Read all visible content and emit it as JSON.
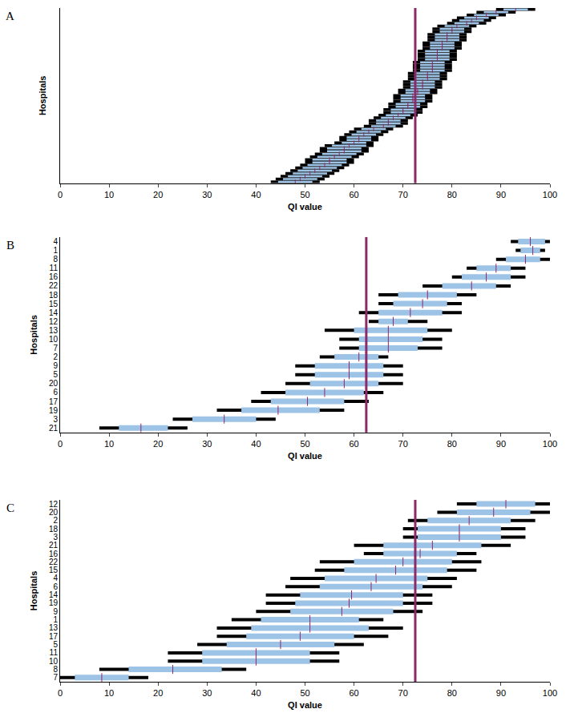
{
  "chart_data": [
    {
      "type": "range",
      "label": "A",
      "orientation": "horizontal",
      "color": "#9dc3e6",
      "x_label": "QI value",
      "y_label": "Hospitals",
      "xlim": [
        0,
        100
      ],
      "xticks": [
        0,
        10,
        20,
        30,
        40,
        50,
        60,
        70,
        80,
        90,
        100
      ],
      "reference": 72.5,
      "categories": [
        null,
        null,
        null,
        null,
        null,
        null,
        null,
        null,
        null,
        null,
        null,
        null,
        null,
        null,
        null,
        null,
        null,
        null,
        null,
        null,
        null,
        null,
        null,
        null,
        null,
        null,
        null,
        null,
        null,
        null,
        null,
        null,
        null,
        null,
        null,
        null,
        null,
        null,
        null,
        null,
        null,
        null,
        null,
        null,
        null,
        null,
        null,
        null,
        null,
        null,
        null,
        null,
        null,
        null,
        null,
        null,
        null,
        null,
        null,
        null,
        null,
        null,
        null
      ],
      "values": [
        93,
        89,
        87,
        85,
        84,
        83,
        81,
        80,
        80,
        79,
        79,
        79,
        78,
        78,
        78,
        77,
        77,
        77,
        77,
        76,
        76,
        76,
        76,
        75,
        75,
        75,
        74,
        74,
        74,
        73,
        73,
        72,
        72,
        72,
        71,
        71,
        70,
        70,
        69,
        68,
        67,
        67,
        66,
        64,
        63,
        62,
        61,
        61,
        60,
        59,
        58,
        58,
        57,
        56,
        55,
        55,
        54,
        53,
        52,
        51,
        50,
        49,
        48
      ],
      "inner_low": [
        90.5,
        86.5,
        84.5,
        82.5,
        81.5,
        80.5,
        78.5,
        77.5,
        77.5,
        76.5,
        76.5,
        76.5,
        75.5,
        75.5,
        75.5,
        74.5,
        74.5,
        74.5,
        74.5,
        73.5,
        73.5,
        73.5,
        73.5,
        72.5,
        72.5,
        72.5,
        71.5,
        71.5,
        71.5,
        70.5,
        70.5,
        69.5,
        69.5,
        69.5,
        68.5,
        68.5,
        67.5,
        67.5,
        66.5,
        65.5,
        64.5,
        64.5,
        63.5,
        61.5,
        60.5,
        59.5,
        58.5,
        58.5,
        57.5,
        55.5,
        54.5,
        54.5,
        53.5,
        52.5,
        51.5,
        51.5,
        50.5,
        49.5,
        48.5,
        47.5,
        46.5,
        45.5,
        44.5
      ],
      "inner_high": [
        95.5,
        91.5,
        89.5,
        87.5,
        86.5,
        85.5,
        83.5,
        82.5,
        82.5,
        81.5,
        81.5,
        81.5,
        80.5,
        80.5,
        80.5,
        79.5,
        79.5,
        79.5,
        79.5,
        78.5,
        78.5,
        78.5,
        78.5,
        77.5,
        77.5,
        77.5,
        76.5,
        76.5,
        76.5,
        75.5,
        75.5,
        74.5,
        74.5,
        74.5,
        73.5,
        73.5,
        72.5,
        72.5,
        71.5,
        70.5,
        69.5,
        69.5,
        68.5,
        66.5,
        65.5,
        64.5,
        63.5,
        63.5,
        62.5,
        62.5,
        61.5,
        61.5,
        60.5,
        59.5,
        58.5,
        58.5,
        57.5,
        56.5,
        55.5,
        54.5,
        53.5,
        52.5,
        51.5
      ],
      "outer_low": [
        89,
        85,
        83,
        81,
        80,
        79,
        77,
        76,
        76,
        75,
        75,
        75,
        74,
        74,
        74,
        73,
        73,
        73,
        73,
        72,
        72,
        72,
        72,
        71,
        71,
        71,
        70,
        70,
        70,
        69,
        69,
        68,
        68,
        68,
        67,
        67,
        66,
        66,
        65,
        64,
        63,
        63,
        62,
        60,
        59,
        58,
        57,
        57,
        56,
        54,
        53,
        53,
        52,
        51,
        50,
        50,
        49,
        48,
        47,
        46,
        45,
        44,
        43
      ],
      "outer_high": [
        97,
        93,
        91,
        89,
        88,
        87,
        85,
        84,
        84,
        83,
        83,
        83,
        82,
        82,
        82,
        81,
        81,
        81,
        81,
        80,
        80,
        80,
        80,
        79,
        79,
        79,
        78,
        78,
        78,
        77,
        77,
        76,
        76,
        76,
        75,
        75,
        74,
        74,
        73,
        72,
        71,
        71,
        70,
        68,
        67,
        66,
        65,
        65,
        64,
        64,
        63,
        63,
        62,
        61,
        60,
        60,
        59,
        58,
        57,
        56,
        55,
        54,
        53
      ]
    },
    {
      "type": "range",
      "label": "B",
      "orientation": "horizontal",
      "color": "#9dc3e6",
      "x_label": "QI value",
      "y_label": "Hospitals",
      "xlim": [
        0,
        100
      ],
      "xticks": [
        0,
        10,
        20,
        30,
        40,
        50,
        60,
        70,
        80,
        90,
        100
      ],
      "reference": 62.5,
      "categories": [
        "4",
        "1",
        "8",
        "11",
        "16",
        "22",
        "18",
        "15",
        "14",
        "12",
        "13",
        "10",
        "7",
        "2",
        "9",
        "5",
        "20",
        "6",
        "17",
        "19",
        "3",
        "21"
      ],
      "values": [
        96,
        96.5,
        95,
        89,
        87,
        84,
        75,
        74,
        71.5,
        68,
        67,
        67,
        67,
        61,
        59,
        59,
        58,
        54,
        50.5,
        44.5,
        33.5,
        16.5
      ],
      "inner_low": [
        93.5,
        94,
        91,
        85,
        82,
        78,
        69,
        68,
        65,
        65,
        60,
        61,
        61,
        56,
        52,
        52,
        51,
        46,
        43,
        37,
        27,
        12
      ],
      "inner_high": [
        99,
        98,
        98,
        92,
        92,
        89,
        81,
        79,
        78,
        71,
        75,
        74,
        73,
        65,
        66,
        66,
        65,
        62,
        58,
        53,
        40,
        22
      ],
      "outer_low": [
        92,
        93,
        89,
        83,
        80,
        74,
        65,
        65,
        61,
        63,
        54,
        57,
        57,
        53,
        48,
        48,
        46,
        41,
        39,
        32,
        23,
        8
      ],
      "outer_high": [
        100,
        99,
        100,
        95,
        95,
        92,
        85,
        82,
        82,
        75,
        80,
        78,
        78,
        67,
        70,
        70,
        70,
        66,
        63,
        58,
        44,
        26
      ]
    },
    {
      "type": "range",
      "label": "C",
      "orientation": "horizontal",
      "color": "#9dc3e6",
      "x_label": "QI value",
      "y_label": "Hospitals",
      "xlim": [
        0,
        100
      ],
      "xticks": [
        0,
        10,
        20,
        30,
        40,
        50,
        60,
        70,
        80,
        90,
        100
      ],
      "reference": 72.5,
      "categories": [
        "12",
        "20",
        "2",
        "18",
        "3",
        "21",
        "16",
        "22",
        "15",
        "4",
        "6",
        "14",
        "19",
        "9",
        "1",
        "13",
        "17",
        "5",
        "11",
        "10",
        "8",
        "7"
      ],
      "values": [
        91,
        88.5,
        83.5,
        81.5,
        81.5,
        76,
        73.5,
        70,
        68.5,
        64.5,
        63.5,
        59.5,
        59,
        57.5,
        51,
        51,
        49,
        45,
        40,
        40,
        23,
        8.5
      ],
      "inner_low": [
        85,
        81,
        75,
        73,
        73,
        66,
        66,
        60,
        58,
        54,
        53,
        49,
        48,
        47,
        41,
        39,
        38,
        34,
        29,
        29,
        14,
        3
      ],
      "inner_high": [
        97,
        96,
        92,
        90,
        90,
        86,
        81,
        80,
        79,
        75,
        74,
        70,
        70,
        68,
        61,
        63,
        60,
        56,
        51,
        51,
        33,
        14
      ],
      "outer_low": [
        81,
        77,
        71,
        70,
        70,
        60,
        62,
        53,
        52,
        47,
        46,
        42,
        42,
        40,
        35,
        32,
        32,
        28,
        22,
        22,
        8,
        0
      ],
      "outer_high": [
        100,
        100,
        97,
        95,
        95,
        92,
        85,
        86,
        85,
        81,
        80,
        76,
        76,
        74,
        66,
        70,
        67,
        62,
        57,
        57,
        38,
        18
      ]
    }
  ]
}
